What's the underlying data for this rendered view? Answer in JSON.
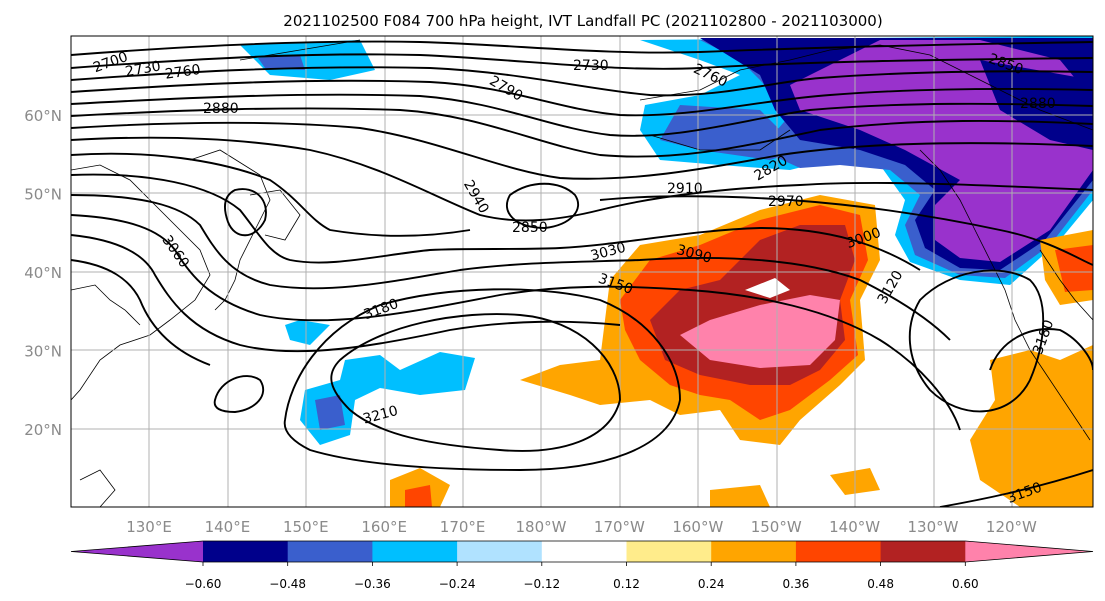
{
  "title": "2021102500 F084 700 hPa height, IVT Landfall PC (2021102800 - 2021103000)",
  "map": {
    "lon_ticks": [
      "130°E",
      "140°E",
      "150°E",
      "160°E",
      "170°E",
      "180°W",
      "170°W",
      "160°W",
      "150°W",
      "140°W",
      "130°W",
      "120°W"
    ],
    "lat_ticks": [
      "60°N",
      "50°N",
      "40°N",
      "30°N",
      "20°N"
    ],
    "grid": true
  },
  "height_contour_labels": [
    "2700",
    "2730",
    "2760",
    "2790",
    "2730",
    "2760",
    "2850",
    "2880",
    "2820",
    "2880",
    "2910",
    "2940",
    "2850",
    "2970",
    "3000",
    "3030",
    "3090",
    "3060",
    "3150",
    "3120",
    "3180",
    "3180",
    "3210",
    "3150"
  ],
  "colorbar": {
    "colors": [
      "#9932cc",
      "#00008b",
      "#3a5fcd",
      "#00bfff",
      "#b0e2ff",
      "#ffffff",
      "#ffec8b",
      "#ffa500",
      "#ff4500",
      "#b22222",
      "#ff82ab"
    ],
    "tick_labels": [
      "−0.60",
      "−0.48",
      "−0.36",
      "−0.24",
      "−0.12",
      "0.12",
      "0.24",
      "0.36",
      "0.48",
      "0.60"
    ],
    "extend": "both"
  }
}
